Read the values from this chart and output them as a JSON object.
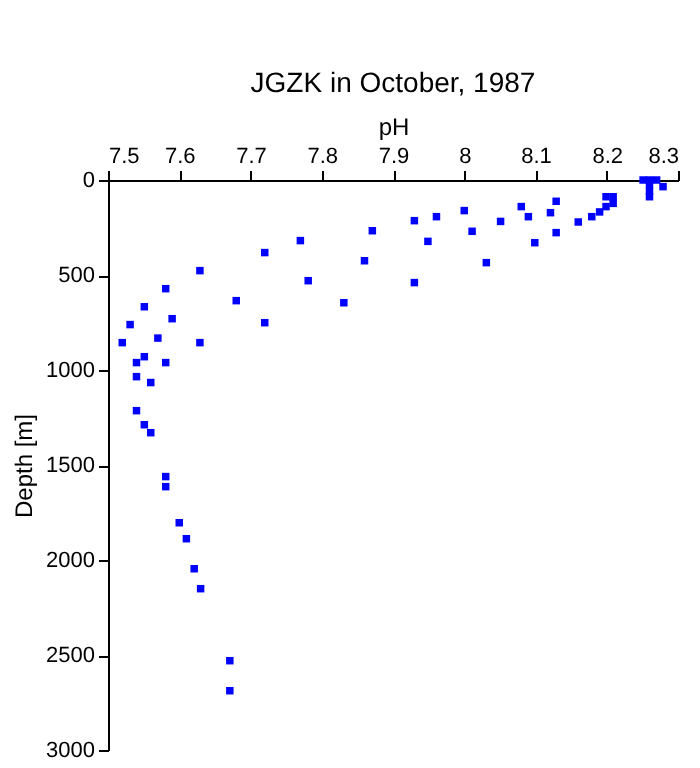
{
  "chart_data": {
    "type": "scatter",
    "title": "JGZK in October, 1987",
    "xlabel": "pH",
    "ylabel": "Depth [m]",
    "x": [
      8.251,
      8.26,
      8.27,
      8.26,
      8.279,
      8.26,
      8.26,
      8.209,
      8.209,
      8.199,
      8.199,
      8.19,
      8.179,
      8.16,
      8.129,
      8.121,
      8.129,
      8.099,
      8.09,
      8.08,
      8.051,
      8.031,
      8.011,
      8.0,
      7.961,
      7.949,
      7.93,
      7.93,
      7.871,
      7.86,
      7.831,
      7.781,
      7.77,
      7.72,
      7.72,
      7.68,
      7.629,
      7.629,
      7.59,
      7.581,
      7.581,
      7.57,
      7.551,
      7.551,
      7.54,
      7.531,
      7.52,
      7.54,
      7.56,
      7.54,
      7.551,
      7.56,
      7.581,
      7.581,
      7.6,
      7.61,
      7.621,
      7.63,
      7.671,
      7.671
    ],
    "series": [
      {
        "color": "#0000ff",
        "values": [
          0,
          0,
          0,
          26,
          35,
          59,
          88,
          88,
          123,
          88,
          140,
          168,
          193,
          221,
          112,
          172,
          277,
          330,
          193,
          140,
          218,
          435,
          270,
          161,
          193,
          323,
          214,
          540,
          267,
          425,
          646,
          530,
          319,
          382,
          751,
          635,
          477,
          856,
          730,
          572,
          961,
          832,
          667,
          930,
          961,
          761,
          856,
          1035,
          1066,
          1214,
          1288,
          1330,
          1561,
          1614,
          1804,
          1888,
          2046,
          2151,
          2530,
          2688
        ]
      }
    ],
    "xlim": [
      7.5,
      8.3
    ],
    "xticks": [
      7.5,
      7.6,
      7.7,
      7.8,
      7.9,
      {
        "value": 8,
        "label": "8"
      },
      8.1,
      8.2,
      8.3
    ],
    "ylim": [
      3000,
      0
    ],
    "yticks": [
      0,
      500,
      1000,
      1500,
      2000,
      2500,
      3000
    ],
    "marker": "square",
    "grid": false,
    "legend": false
  }
}
